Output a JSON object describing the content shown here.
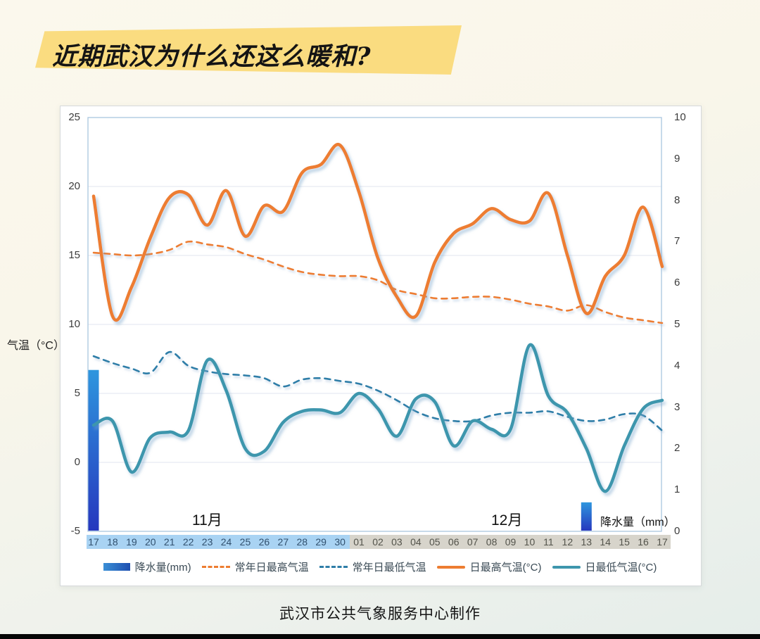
{
  "page": {
    "title": "近期武汉为什么还这么暖和?",
    "footer": "武汉市公共气象服务中心制作"
  },
  "chart": {
    "left_axis_label": "气温（°C）",
    "precip_inline_label": "降水量（mm）",
    "month_label_nov": "11月",
    "month_label_dec": "12月",
    "left_ticks": [
      25,
      20,
      15,
      10,
      5,
      0,
      -5
    ],
    "right_ticks": [
      10,
      9,
      8,
      7,
      6,
      5,
      4,
      3,
      2,
      1,
      0
    ],
    "colors": {
      "orange": "#ED7D31",
      "teal": "#3E96AD",
      "blue_dashed": "#2F7EA8",
      "bar_top": "#2E96DE",
      "bar_bottom": "#2637BE",
      "grid": "#E2E6EF",
      "frame": "#A9C6DF",
      "nov_band": "#A9D3F3",
      "dec_band": "#D7D4CB"
    }
  },
  "chart_data": {
    "type": "line+bar",
    "categories": [
      "17",
      "18",
      "19",
      "20",
      "21",
      "22",
      "23",
      "24",
      "25",
      "26",
      "27",
      "28",
      "29",
      "30",
      "01",
      "02",
      "03",
      "04",
      "05",
      "06",
      "07",
      "08",
      "09",
      "10",
      "11",
      "12",
      "13",
      "14",
      "15",
      "16",
      "17"
    ],
    "nov_days": 14,
    "left_ylim": [
      -5,
      25
    ],
    "right_ylim": [
      0,
      10
    ],
    "grid": "horizontal-only",
    "legend_position": "bottom",
    "series": [
      {
        "name": "降水量(mm)",
        "type": "bar",
        "axis": "right",
        "style": "bar",
        "values": [
          3.9,
          0,
          0,
          0,
          0,
          0,
          0,
          0,
          0,
          0,
          0,
          0,
          0,
          0,
          0,
          0,
          0,
          0,
          0,
          0,
          0,
          0,
          0,
          0,
          0,
          0,
          0.7,
          0,
          0,
          0,
          0
        ]
      },
      {
        "name": "常年日最高气温",
        "type": "line",
        "axis": "left",
        "style": "dashed",
        "color": "#ED7D31",
        "values": [
          15.2,
          15.1,
          15.0,
          15.1,
          15.4,
          16.0,
          15.8,
          15.6,
          15.1,
          14.7,
          14.2,
          13.8,
          13.6,
          13.5,
          13.5,
          13.2,
          12.5,
          12.2,
          11.9,
          11.9,
          12.0,
          12.0,
          11.8,
          11.5,
          11.3,
          11.0,
          11.4,
          10.9,
          10.5,
          10.3,
          10.1
        ]
      },
      {
        "name": "常年日最低气温",
        "type": "line",
        "axis": "left",
        "style": "dashed",
        "color": "#2F7EA8",
        "values": [
          7.7,
          7.2,
          6.8,
          6.5,
          8.0,
          7.0,
          6.6,
          6.4,
          6.3,
          6.1,
          5.5,
          6.0,
          6.1,
          5.9,
          5.7,
          5.2,
          4.5,
          3.7,
          3.2,
          3.0,
          3.0,
          3.4,
          3.6,
          3.6,
          3.7,
          3.3,
          3.0,
          3.1,
          3.5,
          3.4,
          2.3
        ]
      },
      {
        "name": "日最高气温(°C)",
        "type": "line",
        "axis": "left",
        "style": "solid",
        "color": "#ED7D31",
        "values": [
          19.3,
          10.6,
          12.7,
          16.3,
          19.2,
          19.4,
          17.2,
          19.7,
          16.4,
          18.6,
          18.2,
          21.0,
          21.6,
          23.0,
          19.6,
          14.8,
          12.0,
          10.6,
          14.5,
          16.6,
          17.3,
          18.4,
          17.6,
          17.5,
          19.5,
          15.0,
          10.8,
          13.5,
          15.0,
          18.5,
          14.2
        ]
      },
      {
        "name": "日最低气温(°C)",
        "type": "line",
        "axis": "left",
        "style": "solid",
        "color": "#3E96AD",
        "values": [
          2.7,
          3.0,
          -0.7,
          1.8,
          2.2,
          2.3,
          7.4,
          5.2,
          1.0,
          0.8,
          2.9,
          3.7,
          3.8,
          3.6,
          5.0,
          3.9,
          1.9,
          4.6,
          4.4,
          1.2,
          3.0,
          2.4,
          2.4,
          8.5,
          4.8,
          3.6,
          1.0,
          -2.1,
          1.2,
          3.9,
          4.5
        ]
      }
    ]
  }
}
